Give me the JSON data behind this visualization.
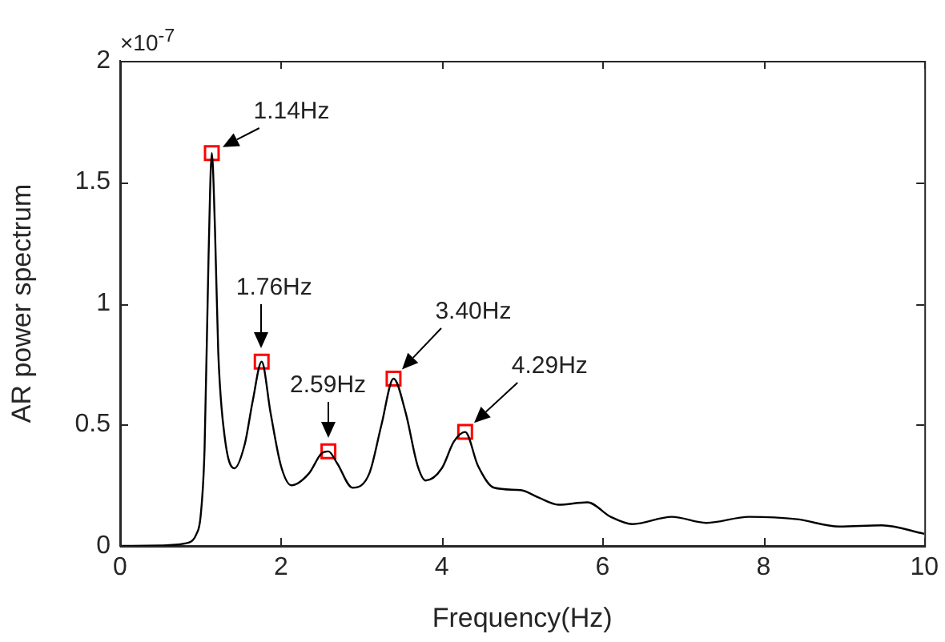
{
  "chart_data": {
    "type": "line",
    "xlabel": "Frequency(Hz)",
    "ylabel": "AR power spectrum",
    "xlim": [
      0,
      10
    ],
    "ylim": [
      0,
      2
    ],
    "xticks": [
      0,
      2,
      4,
      6,
      8,
      10
    ],
    "yticks": [
      0,
      0.5,
      1,
      1.5,
      2
    ],
    "grid": false,
    "legend": false,
    "annotations": [
      "×10$^{-7}$",
      {
        "text": "1.14Hz",
        "x": 1.14,
        "y": 1.62
      },
      {
        "text": "1.76Hz",
        "x": 1.76,
        "y": 0.76
      },
      {
        "text": "2.59Hz",
        "x": 2.59,
        "y": 0.39
      },
      {
        "text": "3.40Hz",
        "x": 3.4,
        "y": 0.69
      },
      {
        "text": "4.29Hz",
        "x": 4.29,
        "y": 0.47
      }
    ],
    "series": [
      {
        "type": "line",
        "color": "#000000",
        "marker": "none",
        "x": [
          0,
          0.5,
          0.8,
          0.95,
          1.0,
          1.05,
          1.1,
          1.14,
          1.18,
          1.22,
          1.3,
          1.42,
          1.55,
          1.65,
          1.76,
          1.87,
          2.0,
          2.13,
          2.35,
          2.5,
          2.59,
          2.7,
          2.89,
          3.1,
          3.25,
          3.4,
          3.55,
          3.7,
          3.8,
          4.0,
          4.15,
          4.29,
          4.45,
          4.65,
          4.98,
          5.2,
          5.45,
          5.81,
          6.1,
          6.37,
          6.86,
          7.29,
          7.82,
          8.42,
          8.94,
          9.47,
          10
        ],
        "values": [
          0,
          0.002,
          0.01,
          0.05,
          0.12,
          0.4,
          1.2,
          1.62,
          1.3,
          0.8,
          0.45,
          0.32,
          0.42,
          0.6,
          0.76,
          0.55,
          0.33,
          0.25,
          0.3,
          0.38,
          0.39,
          0.34,
          0.24,
          0.3,
          0.5,
          0.69,
          0.55,
          0.33,
          0.27,
          0.32,
          0.43,
          0.47,
          0.33,
          0.24,
          0.23,
          0.2,
          0.17,
          0.18,
          0.12,
          0.09,
          0.12,
          0.095,
          0.12,
          0.11,
          0.08,
          0.085,
          0.05
        ]
      },
      {
        "type": "scatter",
        "color": "#ff0000",
        "marker": "square",
        "x": [
          1.14,
          1.76,
          2.59,
          3.4,
          4.29
        ],
        "values": [
          1.62,
          0.76,
          0.39,
          0.69,
          0.47
        ]
      }
    ]
  }
}
